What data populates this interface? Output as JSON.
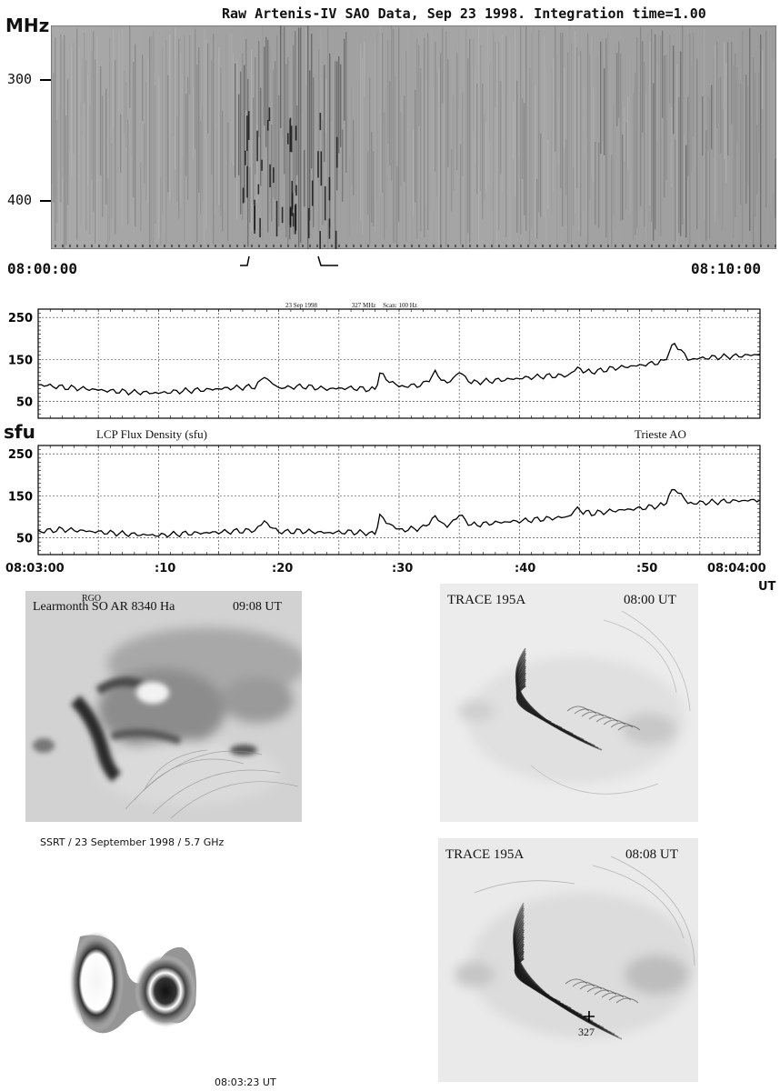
{
  "spectrogram": {
    "title": "Raw  Artenis-IV  SAO Data, Sep 23 1998. Integration time=1.00",
    "y_unit": "MHz",
    "y_ticks": [
      "300",
      "400"
    ],
    "x_start": "08:00:00",
    "x_end": "08:10:00"
  },
  "flux_upper": {
    "header_date": "23 Sep 1998",
    "header_freq": "327 MHz",
    "header_scan": "Scan: 100 Hz"
  },
  "flux_lower": {
    "unit": "sfu",
    "caption_left": "LCP Flux Density (sfu)",
    "caption_right": "Trieste AO"
  },
  "time_axis": {
    "ticks": [
      "08:03:00",
      ":10",
      ":20",
      ":30",
      ":40",
      ":50",
      "08:04:00"
    ],
    "unit": "UT"
  },
  "images": {
    "halpha": {
      "label": "Learmonth SO AR 8340 Ha",
      "overlay": "RGO",
      "time": "09:08 UT"
    },
    "trace1": {
      "label": "TRACE  195A",
      "time": "08:00 UT"
    },
    "trace2": {
      "label": "TRACE  195A",
      "time": "08:08 UT",
      "marker": "327"
    },
    "ssrt": {
      "caption": "SSRT / 23 September 1998 / 5.7 GHz",
      "time": "08:03:23 UT"
    }
  },
  "chart_data": [
    {
      "type": "line",
      "title": "23 Sep 1998   327 MHz   Scan: 100 Hz",
      "xlabel": "UT",
      "ylabel": "",
      "x_ticks": [
        "08:03:00",
        ":10",
        ":20",
        ":30",
        ":40",
        ":50",
        "08:04:00"
      ],
      "y_ticks": [
        50,
        150,
        250
      ],
      "xlim": [
        0,
        60
      ],
      "ylim": [
        10,
        270
      ],
      "grid": true,
      "series": [
        {
          "x": [
            0,
            2,
            4,
            6,
            8,
            10,
            12,
            14,
            16,
            18,
            18.8,
            20,
            22,
            24,
            26,
            28,
            28.4,
            30,
            32,
            33,
            34,
            35,
            36,
            38,
            40,
            42,
            44,
            44.6,
            46,
            48,
            50,
            52,
            52.9,
            54,
            56,
            58,
            60
          ],
          "y": [
            90,
            84,
            80,
            75,
            72,
            70,
            75,
            78,
            82,
            85,
            108,
            82,
            86,
            80,
            82,
            78,
            115,
            85,
            90,
            118,
            92,
            120,
            95,
            100,
            105,
            110,
            112,
            128,
            120,
            130,
            136,
            145,
            190,
            150,
            155,
            158,
            162
          ]
        }
      ]
    },
    {
      "type": "line",
      "title": "LCP Flux Density (sfu)",
      "xlabel": "UT",
      "ylabel": "sfu",
      "x_ticks": [
        "08:03:00",
        ":10",
        ":20",
        ":30",
        ":40",
        ":50",
        "08:04:00"
      ],
      "y_ticks": [
        50,
        150,
        250
      ],
      "xlim": [
        0,
        60
      ],
      "ylim": [
        10,
        270
      ],
      "grid": true,
      "series": [
        {
          "x": [
            0,
            2,
            4,
            6,
            8,
            10,
            12,
            14,
            16,
            18,
            18.8,
            20,
            22,
            24,
            26,
            28,
            28.4,
            30,
            32,
            33,
            34,
            35,
            36,
            38,
            40,
            42,
            44,
            44.6,
            46,
            48,
            50,
            52,
            52.9,
            54,
            56,
            58,
            60
          ],
          "y": [
            65,
            70,
            66,
            62,
            58,
            56,
            60,
            62,
            65,
            68,
            88,
            64,
            66,
            62,
            64,
            60,
            100,
            68,
            74,
            100,
            76,
            105,
            80,
            86,
            90,
            95,
            100,
            118,
            108,
            115,
            120,
            128,
            170,
            132,
            135,
            138,
            140
          ]
        }
      ]
    }
  ]
}
